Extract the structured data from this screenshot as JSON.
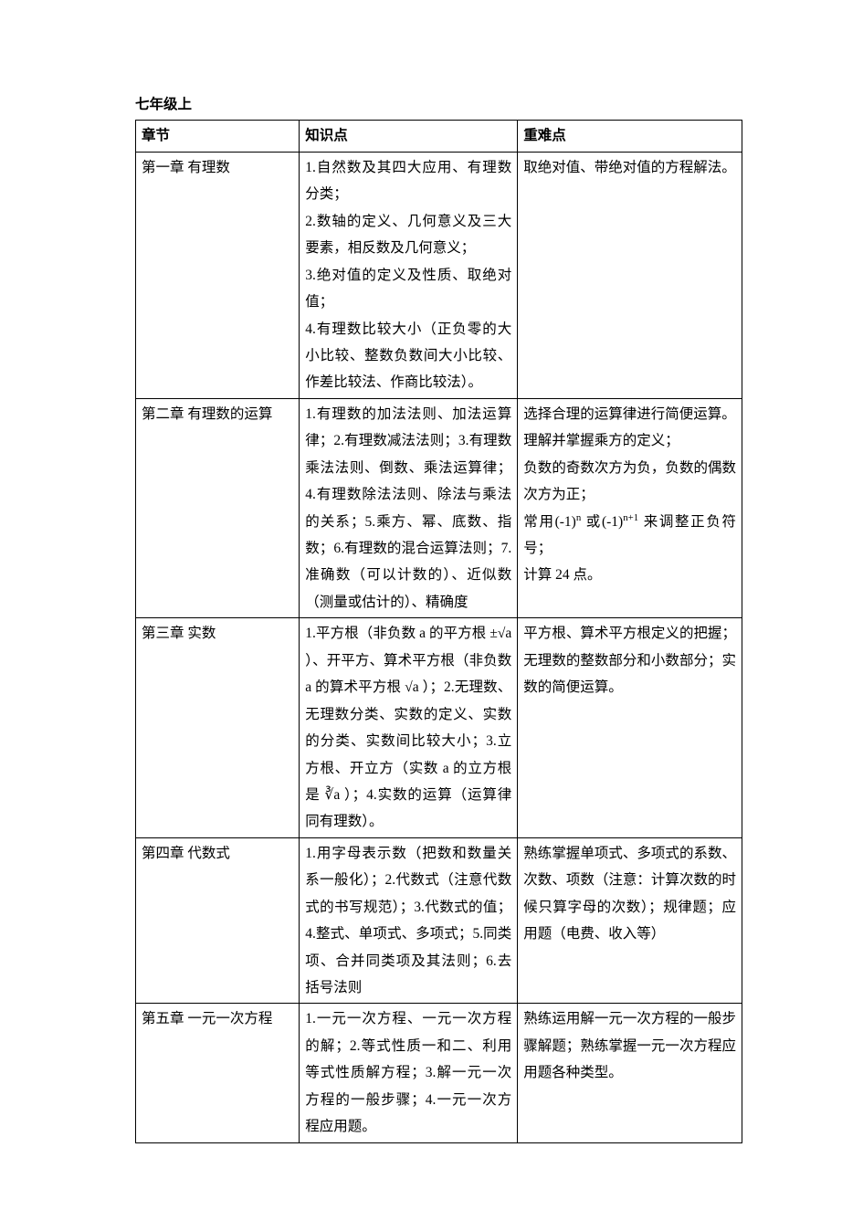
{
  "title": "七年级上",
  "headers": {
    "chapter": "章节",
    "points": "知识点",
    "difficult": "重难点"
  },
  "rows": [
    {
      "chapter": "第一章  有理数",
      "points": "1.自然数及其四大应用、有理数分类；\n2.数轴的定义、几何意义及三大要素，相反数及几何意义；\n3.绝对值的定义及性质、取绝对值；\n4.有理数比较大小（正负零的大小比较、整数负数间大小比较、作差比较法、作商比较法）。",
      "difficult": "取绝对值、带绝对值的方程解法。"
    },
    {
      "chapter": "第二章  有理数的运算",
      "points": "1.有理数的加法法则、加法运算律；2.有理数减法法则；3.有理数乘法法则、倒数、乘法运算律；4.有理数除法法则、除法与乘法的关系；5.乘方、幂、底数、指数；6.有理数的混合运算法则；7.准确数（可以计数的）、近似数（测量或估计的）、精确度",
      "difficult_html": "选择合理的运算律进行简便运算。<br>理解并掌握乘方的定义；<br>负数的奇数次方为负，负数的偶数次方为正；<br>常用<span class='math'>(-1)<sup>n</sup></span> 或<span class='math'>(-1)<sup>n+1</sup></span> 来调整正负符号；<br>计算 24 点。"
    },
    {
      "chapter": "第三章  实数",
      "points_html": "1.平方根（非负数 a 的平方根 <span class='math'>±√a</span> ）、开平方、算术平方根（非负数 a 的算术平方根 <span class='math'>√a</span> ）；2.无理数、无理数分类、实数的定义、实数的分类、实数间比较大小；3.立方根、开立方（实数 a 的立方根是 <span class='math'>∛a</span> ）；4.实数的运算（运算律同有理数）。",
      "difficult": "平方根、算术平方根定义的把握；无理数的整数部分和小数部分；实数的简便运算。"
    },
    {
      "chapter": "第四章  代数式",
      "points": "1.用字母表示数（把数和数量关系一般化）；2.代数式（注意代数式的书写规范）；3.代数式的值；4.整式、单项式、多项式；5.同类项、合并同类项及其法则；6.去括号法则",
      "difficult": "熟练掌握单项式、多项式的系数、次数、项数（注意：计算次数的时候只算字母的次数）；规律题；应用题（电费、收入等）"
    },
    {
      "chapter": "第五章  一元一次方程",
      "points": "1.一元一次方程、一元一次方程的解；2.等式性质一和二、利用等式性质解方程；3.解一元一次方程的一般步骤；4.一元一次方程应用题。",
      "difficult": "熟练运用解一元一次方程的一般步骤解题；熟练掌握一元一次方程应用题各种类型。"
    }
  ]
}
